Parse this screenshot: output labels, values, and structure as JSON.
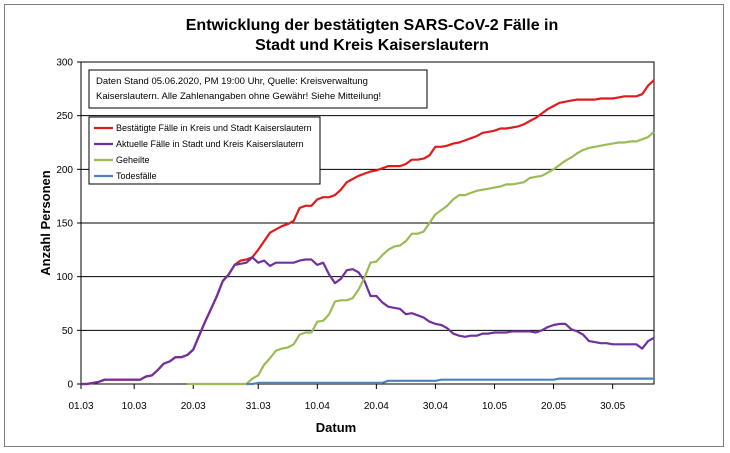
{
  "chart_data": {
    "type": "line",
    "title_line1": "Entwicklung der bestätigten SARS-CoV-2 Fälle in",
    "title_line2": "Stadt und Kreis Kaiserslautern",
    "xlabel": "Datum",
    "ylabel": "Anzahl Personen",
    "ylim": [
      0,
      300
    ],
    "yticks": [
      "0",
      "50",
      "100",
      "150",
      "200",
      "250",
      "300"
    ],
    "x_tick_labels": [
      "01.03",
      "10.03",
      "20.03",
      "31.03",
      "10.04",
      "20.04",
      "30.04",
      "10.05",
      "20.05",
      "30.05"
    ],
    "x_start": 0,
    "x_end": 97,
    "x_tick_days": [
      0,
      9,
      19,
      30,
      40,
      50,
      60,
      70,
      80,
      90
    ],
    "grid": true,
    "legend_position": "upper-left",
    "note_line1": "Daten Stand 05.06.2020, PM 19:00 Uhr, Quelle: Kreisverwaltung",
    "note_line2": "Kaiserslautern. Alle Zahlenangaben ohne Gewähr! Siehe Mitteilung!",
    "series": [
      {
        "name": "Bestätigte Fälle in Kreis und Stadt Kaiserslautern",
        "color": "#e31a1c",
        "points": [
          [
            0,
            0
          ],
          [
            1,
            0
          ],
          [
            2,
            1
          ],
          [
            3,
            2
          ],
          [
            4,
            4
          ],
          [
            5,
            4
          ],
          [
            6,
            4
          ],
          [
            7,
            4
          ],
          [
            8,
            4
          ],
          [
            9,
            4
          ],
          [
            10,
            4
          ],
          [
            11,
            7
          ],
          [
            12,
            8
          ],
          [
            13,
            13
          ],
          [
            14,
            19
          ],
          [
            15,
            21
          ],
          [
            16,
            25
          ],
          [
            17,
            25
          ],
          [
            18,
            27
          ],
          [
            19,
            32
          ],
          [
            20,
            45
          ],
          [
            21,
            58
          ],
          [
            22,
            70
          ],
          [
            23,
            82
          ],
          [
            24,
            96
          ],
          [
            25,
            102
          ],
          [
            26,
            111
          ],
          [
            27,
            115
          ],
          [
            28,
            116
          ],
          [
            29,
            118
          ],
          [
            30,
            125
          ],
          [
            31,
            133
          ],
          [
            32,
            141
          ],
          [
            33,
            144
          ],
          [
            34,
            147
          ],
          [
            35,
            149
          ],
          [
            36,
            152
          ],
          [
            37,
            164
          ],
          [
            38,
            166
          ],
          [
            39,
            166
          ],
          [
            40,
            172
          ],
          [
            41,
            174
          ],
          [
            42,
            174
          ],
          [
            43,
            176
          ],
          [
            44,
            181
          ],
          [
            45,
            188
          ],
          [
            46,
            191
          ],
          [
            47,
            194
          ],
          [
            48,
            196
          ],
          [
            49,
            198
          ],
          [
            50,
            199
          ],
          [
            51,
            201
          ],
          [
            52,
            203
          ],
          [
            53,
            203
          ],
          [
            54,
            203
          ],
          [
            55,
            205
          ],
          [
            56,
            209
          ],
          [
            57,
            209
          ],
          [
            58,
            210
          ],
          [
            59,
            213
          ],
          [
            60,
            221
          ],
          [
            61,
            221
          ],
          [
            62,
            222
          ],
          [
            63,
            224
          ],
          [
            64,
            225
          ],
          [
            65,
            227
          ],
          [
            66,
            229
          ],
          [
            67,
            231
          ],
          [
            68,
            234
          ],
          [
            69,
            235
          ],
          [
            70,
            236
          ],
          [
            71,
            238
          ],
          [
            72,
            238
          ],
          [
            73,
            239
          ],
          [
            74,
            240
          ],
          [
            75,
            242
          ],
          [
            76,
            245
          ],
          [
            77,
            248
          ],
          [
            78,
            252
          ],
          [
            79,
            256
          ],
          [
            80,
            259
          ],
          [
            81,
            262
          ],
          [
            82,
            263
          ],
          [
            83,
            264
          ],
          [
            84,
            265
          ],
          [
            85,
            265
          ],
          [
            86,
            265
          ],
          [
            87,
            265
          ],
          [
            88,
            266
          ],
          [
            89,
            266
          ],
          [
            90,
            266
          ],
          [
            91,
            267
          ],
          [
            92,
            268
          ],
          [
            93,
            268
          ],
          [
            94,
            268
          ],
          [
            95,
            270
          ],
          [
            96,
            278
          ],
          [
            97,
            283
          ]
        ]
      },
      {
        "name": "Aktuelle Fälle in Stadt und Kreis Kaiserslautern",
        "color": "#7030a0",
        "points": [
          [
            0,
            0
          ],
          [
            1,
            0
          ],
          [
            2,
            1
          ],
          [
            3,
            2
          ],
          [
            4,
            4
          ],
          [
            5,
            4
          ],
          [
            6,
            4
          ],
          [
            7,
            4
          ],
          [
            8,
            4
          ],
          [
            9,
            4
          ],
          [
            10,
            4
          ],
          [
            11,
            7
          ],
          [
            12,
            8
          ],
          [
            13,
            13
          ],
          [
            14,
            19
          ],
          [
            15,
            21
          ],
          [
            16,
            25
          ],
          [
            17,
            25
          ],
          [
            18,
            27
          ],
          [
            19,
            32
          ],
          [
            20,
            45
          ],
          [
            21,
            58
          ],
          [
            22,
            70
          ],
          [
            23,
            82
          ],
          [
            24,
            96
          ],
          [
            25,
            102
          ],
          [
            26,
            111
          ],
          [
            27,
            112
          ],
          [
            28,
            113
          ],
          [
            29,
            118
          ],
          [
            30,
            113
          ],
          [
            31,
            115
          ],
          [
            32,
            110
          ],
          [
            33,
            113
          ],
          [
            34,
            113
          ],
          [
            35,
            113
          ],
          [
            36,
            113
          ],
          [
            37,
            115
          ],
          [
            38,
            116
          ],
          [
            39,
            116
          ],
          [
            40,
            111
          ],
          [
            41,
            113
          ],
          [
            42,
            102
          ],
          [
            43,
            94
          ],
          [
            44,
            98
          ],
          [
            45,
            106
          ],
          [
            46,
            107
          ],
          [
            47,
            104
          ],
          [
            48,
            96
          ],
          [
            49,
            82
          ],
          [
            50,
            82
          ],
          [
            51,
            76
          ],
          [
            52,
            72
          ],
          [
            53,
            71
          ],
          [
            54,
            70
          ],
          [
            55,
            65
          ],
          [
            56,
            66
          ],
          [
            57,
            64
          ],
          [
            58,
            62
          ],
          [
            59,
            58
          ],
          [
            60,
            56
          ],
          [
            61,
            55
          ],
          [
            62,
            52
          ],
          [
            63,
            47
          ],
          [
            64,
            45
          ],
          [
            65,
            44
          ],
          [
            66,
            45
          ],
          [
            67,
            45
          ],
          [
            68,
            47
          ],
          [
            69,
            47
          ],
          [
            70,
            48
          ],
          [
            71,
            48
          ],
          [
            72,
            48
          ],
          [
            73,
            49
          ],
          [
            74,
            49
          ],
          [
            75,
            49
          ],
          [
            76,
            49
          ],
          [
            77,
            48
          ],
          [
            78,
            50
          ],
          [
            79,
            53
          ],
          [
            80,
            55
          ],
          [
            81,
            56
          ],
          [
            82,
            56
          ],
          [
            83,
            51
          ],
          [
            84,
            49
          ],
          [
            85,
            46
          ],
          [
            86,
            40
          ],
          [
            87,
            39
          ],
          [
            88,
            38
          ],
          [
            89,
            38
          ],
          [
            90,
            37
          ],
          [
            91,
            37
          ],
          [
            92,
            37
          ],
          [
            93,
            37
          ],
          [
            94,
            37
          ],
          [
            95,
            33
          ],
          [
            96,
            40
          ],
          [
            97,
            43
          ]
        ]
      },
      {
        "name": "Geheilte",
        "color": "#9bbb59",
        "points": [
          [
            18,
            0
          ],
          [
            19,
            0
          ],
          [
            20,
            0
          ],
          [
            21,
            0
          ],
          [
            22,
            0
          ],
          [
            23,
            0
          ],
          [
            24,
            0
          ],
          [
            25,
            0
          ],
          [
            26,
            0
          ],
          [
            27,
            0
          ],
          [
            28,
            0
          ],
          [
            29,
            5
          ],
          [
            30,
            8
          ],
          [
            31,
            18
          ],
          [
            32,
            24
          ],
          [
            33,
            31
          ],
          [
            34,
            33
          ],
          [
            35,
            34
          ],
          [
            36,
            37
          ],
          [
            37,
            46
          ],
          [
            38,
            48
          ],
          [
            39,
            48
          ],
          [
            40,
            58
          ],
          [
            41,
            59
          ],
          [
            42,
            65
          ],
          [
            43,
            77
          ],
          [
            44,
            78
          ],
          [
            45,
            78
          ],
          [
            46,
            80
          ],
          [
            47,
            88
          ],
          [
            48,
            99
          ],
          [
            49,
            113
          ],
          [
            50,
            114
          ],
          [
            51,
            120
          ],
          [
            52,
            125
          ],
          [
            53,
            128
          ],
          [
            54,
            129
          ],
          [
            55,
            133
          ],
          [
            56,
            140
          ],
          [
            57,
            140
          ],
          [
            58,
            142
          ],
          [
            59,
            150
          ],
          [
            60,
            158
          ],
          [
            61,
            162
          ],
          [
            62,
            166
          ],
          [
            63,
            172
          ],
          [
            64,
            176
          ],
          [
            65,
            176
          ],
          [
            66,
            178
          ],
          [
            67,
            180
          ],
          [
            68,
            181
          ],
          [
            69,
            182
          ],
          [
            70,
            183
          ],
          [
            71,
            184
          ],
          [
            72,
            186
          ],
          [
            73,
            186
          ],
          [
            74,
            187
          ],
          [
            75,
            188
          ],
          [
            76,
            192
          ],
          [
            77,
            193
          ],
          [
            78,
            194
          ],
          [
            79,
            197
          ],
          [
            80,
            200
          ],
          [
            81,
            204
          ],
          [
            82,
            208
          ],
          [
            83,
            211
          ],
          [
            84,
            215
          ],
          [
            85,
            218
          ],
          [
            86,
            220
          ],
          [
            87,
            221
          ],
          [
            88,
            222
          ],
          [
            89,
            223
          ],
          [
            90,
            224
          ],
          [
            91,
            225
          ],
          [
            92,
            225
          ],
          [
            93,
            226
          ],
          [
            94,
            226
          ],
          [
            95,
            228
          ],
          [
            96,
            230
          ],
          [
            97,
            235
          ]
        ]
      },
      {
        "name": "Todesfälle",
        "color": "#4f81bd",
        "points": [
          [
            28,
            0
          ],
          [
            29,
            0
          ],
          [
            30,
            1
          ],
          [
            35,
            1
          ],
          [
            40,
            1
          ],
          [
            45,
            1
          ],
          [
            50,
            1
          ],
          [
            51,
            1
          ],
          [
            52,
            3
          ],
          [
            55,
            3
          ],
          [
            60,
            3
          ],
          [
            61,
            4
          ],
          [
            65,
            4
          ],
          [
            70,
            4
          ],
          [
            75,
            4
          ],
          [
            80,
            4
          ],
          [
            81,
            5
          ],
          [
            85,
            5
          ],
          [
            90,
            5
          ],
          [
            95,
            5
          ],
          [
            97,
            5
          ]
        ]
      }
    ]
  }
}
